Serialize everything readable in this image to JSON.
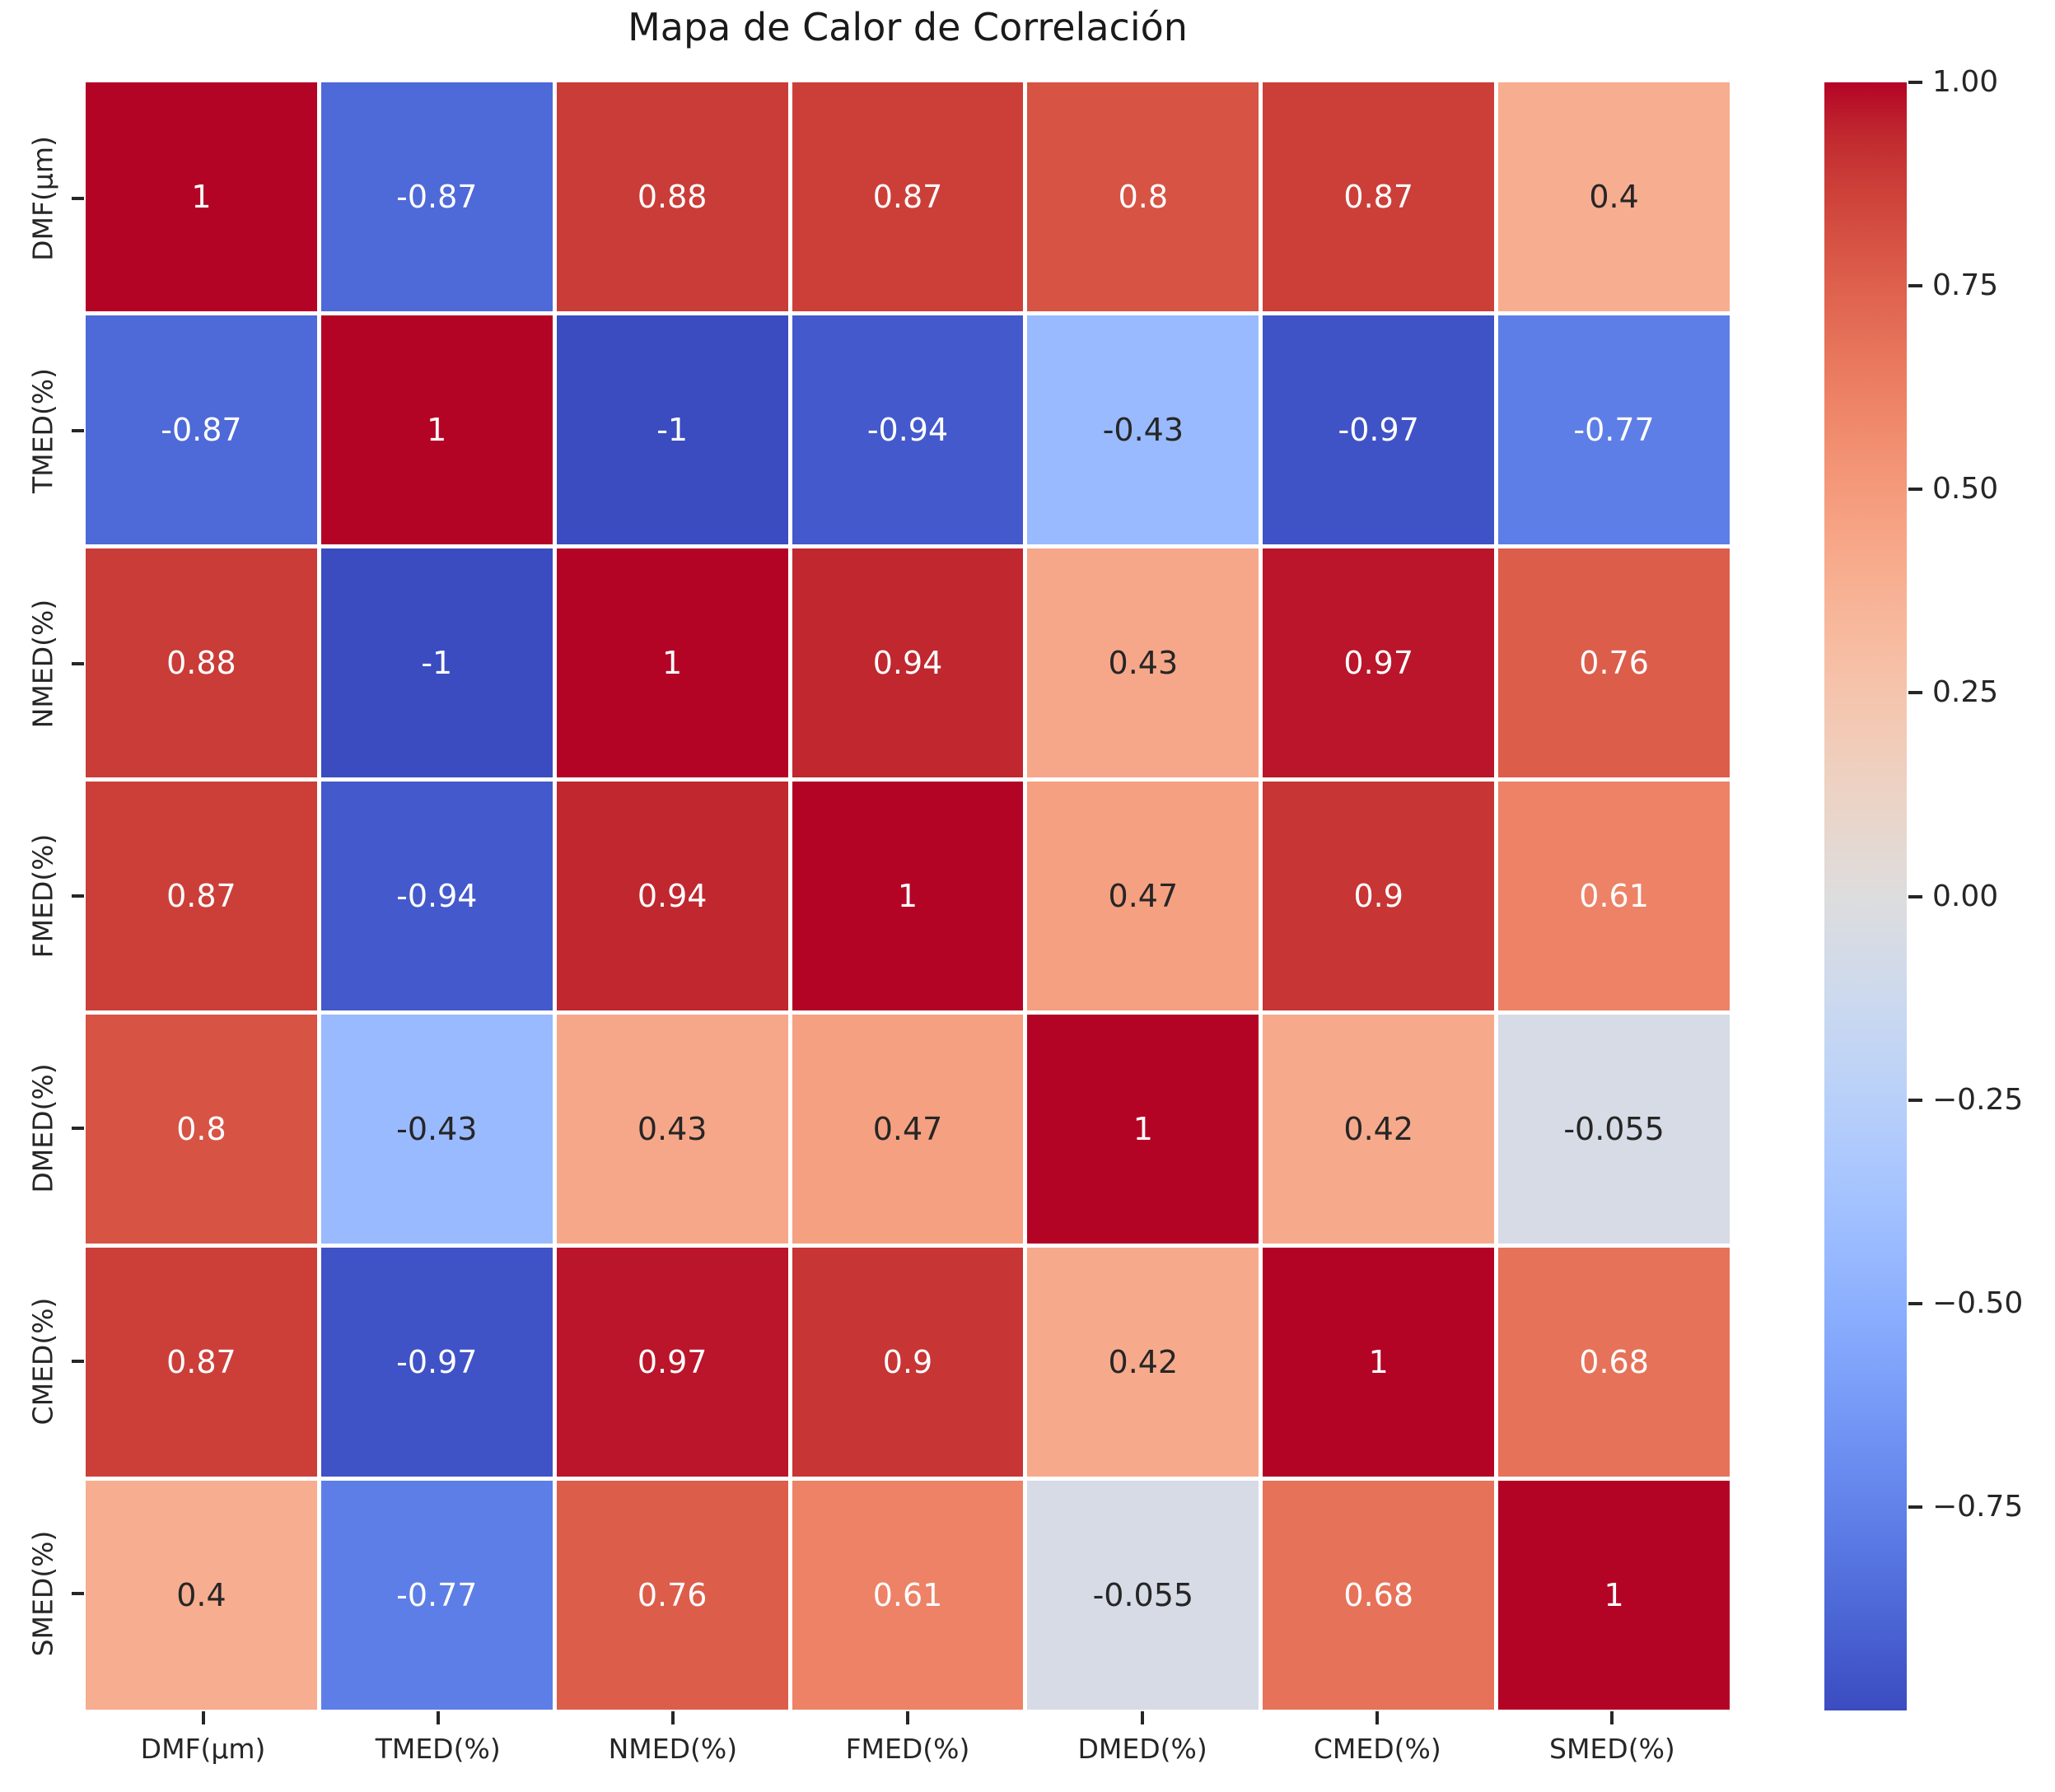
{
  "title": "Mapa de Calor de Correlación",
  "colors": {
    "background": "#ffffff",
    "axis_text": "#262626",
    "annotation_dark": "#262626",
    "annotation_light": "#ffffff",
    "grid_line": "#ffffff"
  },
  "chart_data": {
    "type": "heatmap",
    "title": "Mapa de Calor de Correlación",
    "colormap": "coolwarm",
    "grid": "white-cell-separators",
    "legend_position": "right-colorbar",
    "categories": [
      "DMF(µm)",
      "TMED(%)",
      "NMED(%)",
      "FMED(%)",
      "DMED(%)",
      "CMED(%)",
      "SMED(%)"
    ],
    "matrix": [
      [
        1,
        -0.87,
        0.88,
        0.87,
        0.8,
        0.87,
        0.4
      ],
      [
        -0.87,
        1,
        -1,
        -0.94,
        -0.43,
        -0.97,
        -0.77
      ],
      [
        0.88,
        -1,
        1,
        0.94,
        0.43,
        0.97,
        0.76
      ],
      [
        0.87,
        -0.94,
        0.94,
        1,
        0.47,
        0.9,
        0.61
      ],
      [
        0.8,
        -0.43,
        0.43,
        0.47,
        1,
        0.42,
        -0.055
      ],
      [
        0.87,
        -0.97,
        0.97,
        0.9,
        0.42,
        1,
        0.68
      ],
      [
        0.4,
        -0.77,
        0.76,
        0.61,
        -0.055,
        0.68,
        1
      ]
    ],
    "cell_labels": [
      [
        "1",
        "-0.87",
        "0.88",
        "0.87",
        "0.8",
        "0.87",
        "0.4"
      ],
      [
        "-0.87",
        "1",
        "-1",
        "-0.94",
        "-0.43",
        "-0.97",
        "-0.77"
      ],
      [
        "0.88",
        "-1",
        "1",
        "0.94",
        "0.43",
        "0.97",
        "0.76"
      ],
      [
        "0.87",
        "-0.94",
        "0.94",
        "1",
        "0.47",
        "0.9",
        "0.61"
      ],
      [
        "0.8",
        "-0.43",
        "0.43",
        "0.47",
        "1",
        "0.42",
        "-0.055"
      ],
      [
        "0.87",
        "-0.97",
        "0.97",
        "0.9",
        "0.42",
        "1",
        "0.68"
      ],
      [
        "0.4",
        "-0.77",
        "0.76",
        "0.61",
        "-0.055",
        "0.68",
        "1"
      ]
    ],
    "vmin": -1,
    "vmax": 1,
    "colorbar_ticks": [
      {
        "value": 1.0,
        "label": "1.00"
      },
      {
        "value": 0.75,
        "label": "0.75"
      },
      {
        "value": 0.5,
        "label": "0.50"
      },
      {
        "value": 0.25,
        "label": "0.25"
      },
      {
        "value": 0.0,
        "label": "0.00"
      },
      {
        "value": -0.25,
        "label": "−0.25"
      },
      {
        "value": -0.5,
        "label": "−0.50"
      },
      {
        "value": -0.75,
        "label": "−0.75"
      }
    ]
  }
}
